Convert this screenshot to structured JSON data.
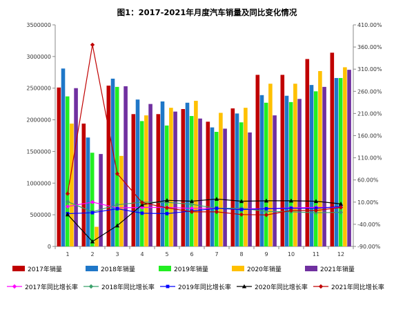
{
  "chart_data": {
    "type": "bar",
    "title": "图1：2017-2021年月度汽车销量及同比变化情况",
    "categories": [
      "1",
      "2",
      "3",
      "4",
      "5",
      "6",
      "7",
      "8",
      "9",
      "10",
      "11",
      "12"
    ],
    "y_left": {
      "min": 0,
      "max": 3500000,
      "step": 500000,
      "ticks": [
        "0",
        "500000",
        "1000000",
        "1500000",
        "2000000",
        "2500000",
        "3000000",
        "3500000"
      ]
    },
    "y_right": {
      "min": -90,
      "max": 410,
      "step": 50,
      "ticks": [
        "-90.00%",
        "-40.00%",
        "10.00%",
        "60.00%",
        "110.00%",
        "160.00%",
        "210.00%",
        "260.00%",
        "310.00%",
        "360.00%",
        "410.00%"
      ]
    },
    "bar_series": [
      {
        "name": "2017年销量",
        "color": "#c00000",
        "values": [
          2510000,
          1940000,
          2540000,
          2090000,
          2090000,
          2170000,
          1970000,
          2180000,
          2710000,
          2710000,
          2960000,
          3060000
        ]
      },
      {
        "name": "2018年销量",
        "color": "#1f77c8",
        "values": [
          2810000,
          1720000,
          2650000,
          2320000,
          2290000,
          2270000,
          1880000,
          2100000,
          2390000,
          2380000,
          2550000,
          2660000
        ]
      },
      {
        "name": "2019年销量",
        "color": "#22ee22",
        "values": [
          2370000,
          1480000,
          2520000,
          1980000,
          1910000,
          2060000,
          1810000,
          1960000,
          2270000,
          2280000,
          2450000,
          2660000
        ]
      },
      {
        "name": "2020年销量",
        "color": "#ffc000",
        "values": [
          1940000,
          310000,
          1430000,
          2070000,
          2190000,
          2300000,
          2110000,
          2190000,
          2570000,
          2570000,
          2770000,
          2830000
        ]
      },
      {
        "name": "2021年销量",
        "color": "#7030a0",
        "values": [
          2500000,
          1460000,
          2530000,
          2250000,
          2130000,
          2020000,
          1860000,
          1800000,
          2070000,
          2330000,
          2520000,
          2790000
        ]
      }
    ],
    "line_series": [
      {
        "name": "2017年同比增长率",
        "color": "#ff00ff",
        "marker": "diamond",
        "values": [
          0.0,
          10.0,
          -3.0,
          -2.0,
          -2.0,
          -4.0,
          -4.0,
          -5.0,
          -5.0,
          -3.0,
          -2.0,
          -2.0
        ]
      },
      {
        "name": "2018年同比增长率",
        "color": "#3aa06a",
        "marker": "diamond",
        "values": [
          11.0,
          -12.0,
          4.0,
          10.0,
          9.6,
          5.0,
          -4.0,
          -3.7,
          -11.0,
          -12.0,
          -14.0,
          -13.0
        ]
      },
      {
        "name": "2019年同比增长率",
        "color": "#0000ff",
        "marker": "square",
        "values": [
          -16.0,
          -14.0,
          -5.0,
          -15.0,
          -16.0,
          -10.0,
          -4.0,
          -7.0,
          -5.0,
          -4.0,
          -4.0,
          0.0
        ]
      },
      {
        "name": "2020年同比增长率",
        "color": "#000000",
        "marker": "triangle",
        "values": [
          -18.0,
          -79.0,
          -43.0,
          4.0,
          14.0,
          12.0,
          17.0,
          12.0,
          13.0,
          13.0,
          12.0,
          6.0
        ]
      },
      {
        "name": "2021年同比增长率",
        "color": "#c00000",
        "marker": "diamond",
        "values": [
          29.0,
          365.0,
          74.0,
          9.0,
          -3.0,
          -12.0,
          -12.0,
          -18.0,
          -19.0,
          -9.0,
          -9.0,
          -2.0
        ]
      }
    ]
  }
}
